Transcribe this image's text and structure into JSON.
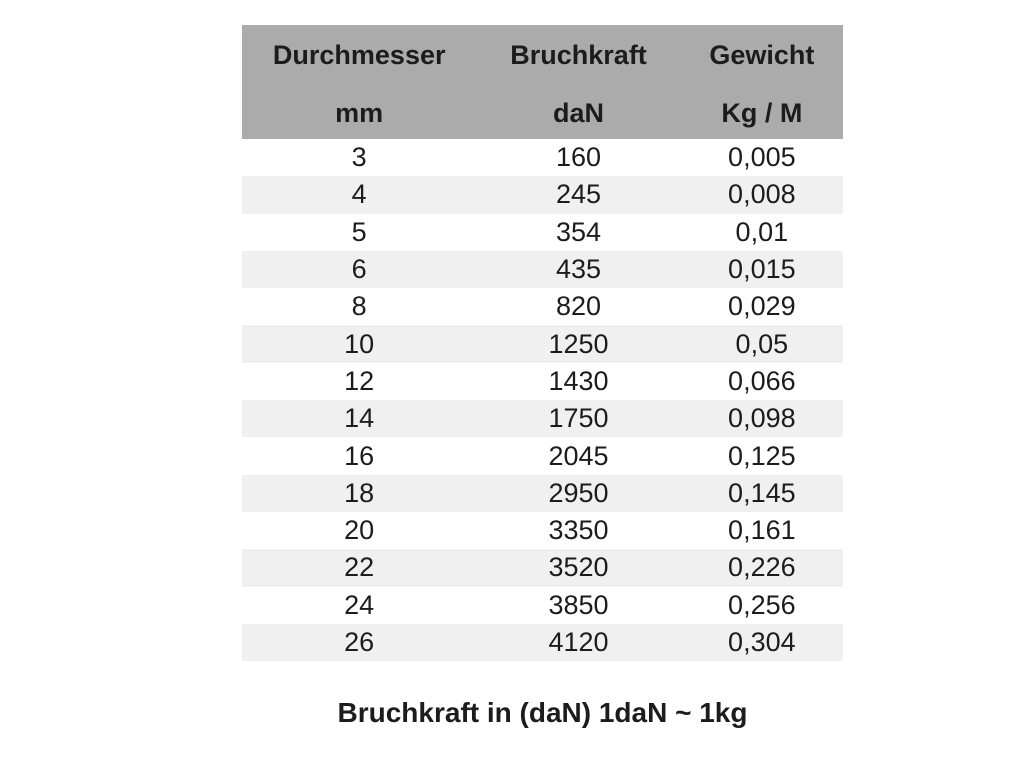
{
  "colors": {
    "header_bg": "#ababab",
    "stripe_bg": "#f0f0f0",
    "text": "#1c1c1c",
    "page_bg": "#ffffff"
  },
  "table": {
    "headers": [
      {
        "label": "Durchmesser",
        "unit": "mm"
      },
      {
        "label": "Bruchkraft",
        "unit": "daN"
      },
      {
        "label": "Gewicht",
        "unit": "Kg / M"
      }
    ],
    "rows": [
      [
        "3",
        "160",
        "0,005"
      ],
      [
        "4",
        "245",
        "0,008"
      ],
      [
        "5",
        "354",
        "0,01"
      ],
      [
        "6",
        "435",
        "0,015"
      ],
      [
        "8",
        "820",
        "0,029"
      ],
      [
        "10",
        "1250",
        "0,05"
      ],
      [
        "12",
        "1430",
        "0,066"
      ],
      [
        "14",
        "1750",
        "0,098"
      ],
      [
        "16",
        "2045",
        "0,125"
      ],
      [
        "18",
        "2950",
        "0,145"
      ],
      [
        "20",
        "3350",
        "0,161"
      ],
      [
        "22",
        "3520",
        "0,226"
      ],
      [
        "24",
        "3850",
        "0,256"
      ],
      [
        "26",
        "4120",
        "0,304"
      ]
    ]
  },
  "footer": {
    "caption": "Bruchkraft in (daN) 1daN ~ 1kg"
  },
  "chart_data": {
    "type": "table",
    "title": "",
    "columns": [
      "Durchmesser mm",
      "Bruchkraft daN",
      "Gewicht Kg / M"
    ],
    "diameter_mm": [
      3,
      4,
      5,
      6,
      8,
      10,
      12,
      14,
      16,
      18,
      20,
      22,
      24,
      26
    ],
    "bruchkraft_daN": [
      160,
      245,
      354,
      435,
      820,
      1250,
      1430,
      1750,
      2045,
      2950,
      3350,
      3520,
      3850,
      4120
    ],
    "gewicht_kg_per_m": [
      0.005,
      0.008,
      0.01,
      0.015,
      0.029,
      0.05,
      0.066,
      0.098,
      0.125,
      0.145,
      0.161,
      0.226,
      0.256,
      0.304
    ],
    "note": "Bruchkraft in (daN) 1daN ~ 1kg"
  }
}
